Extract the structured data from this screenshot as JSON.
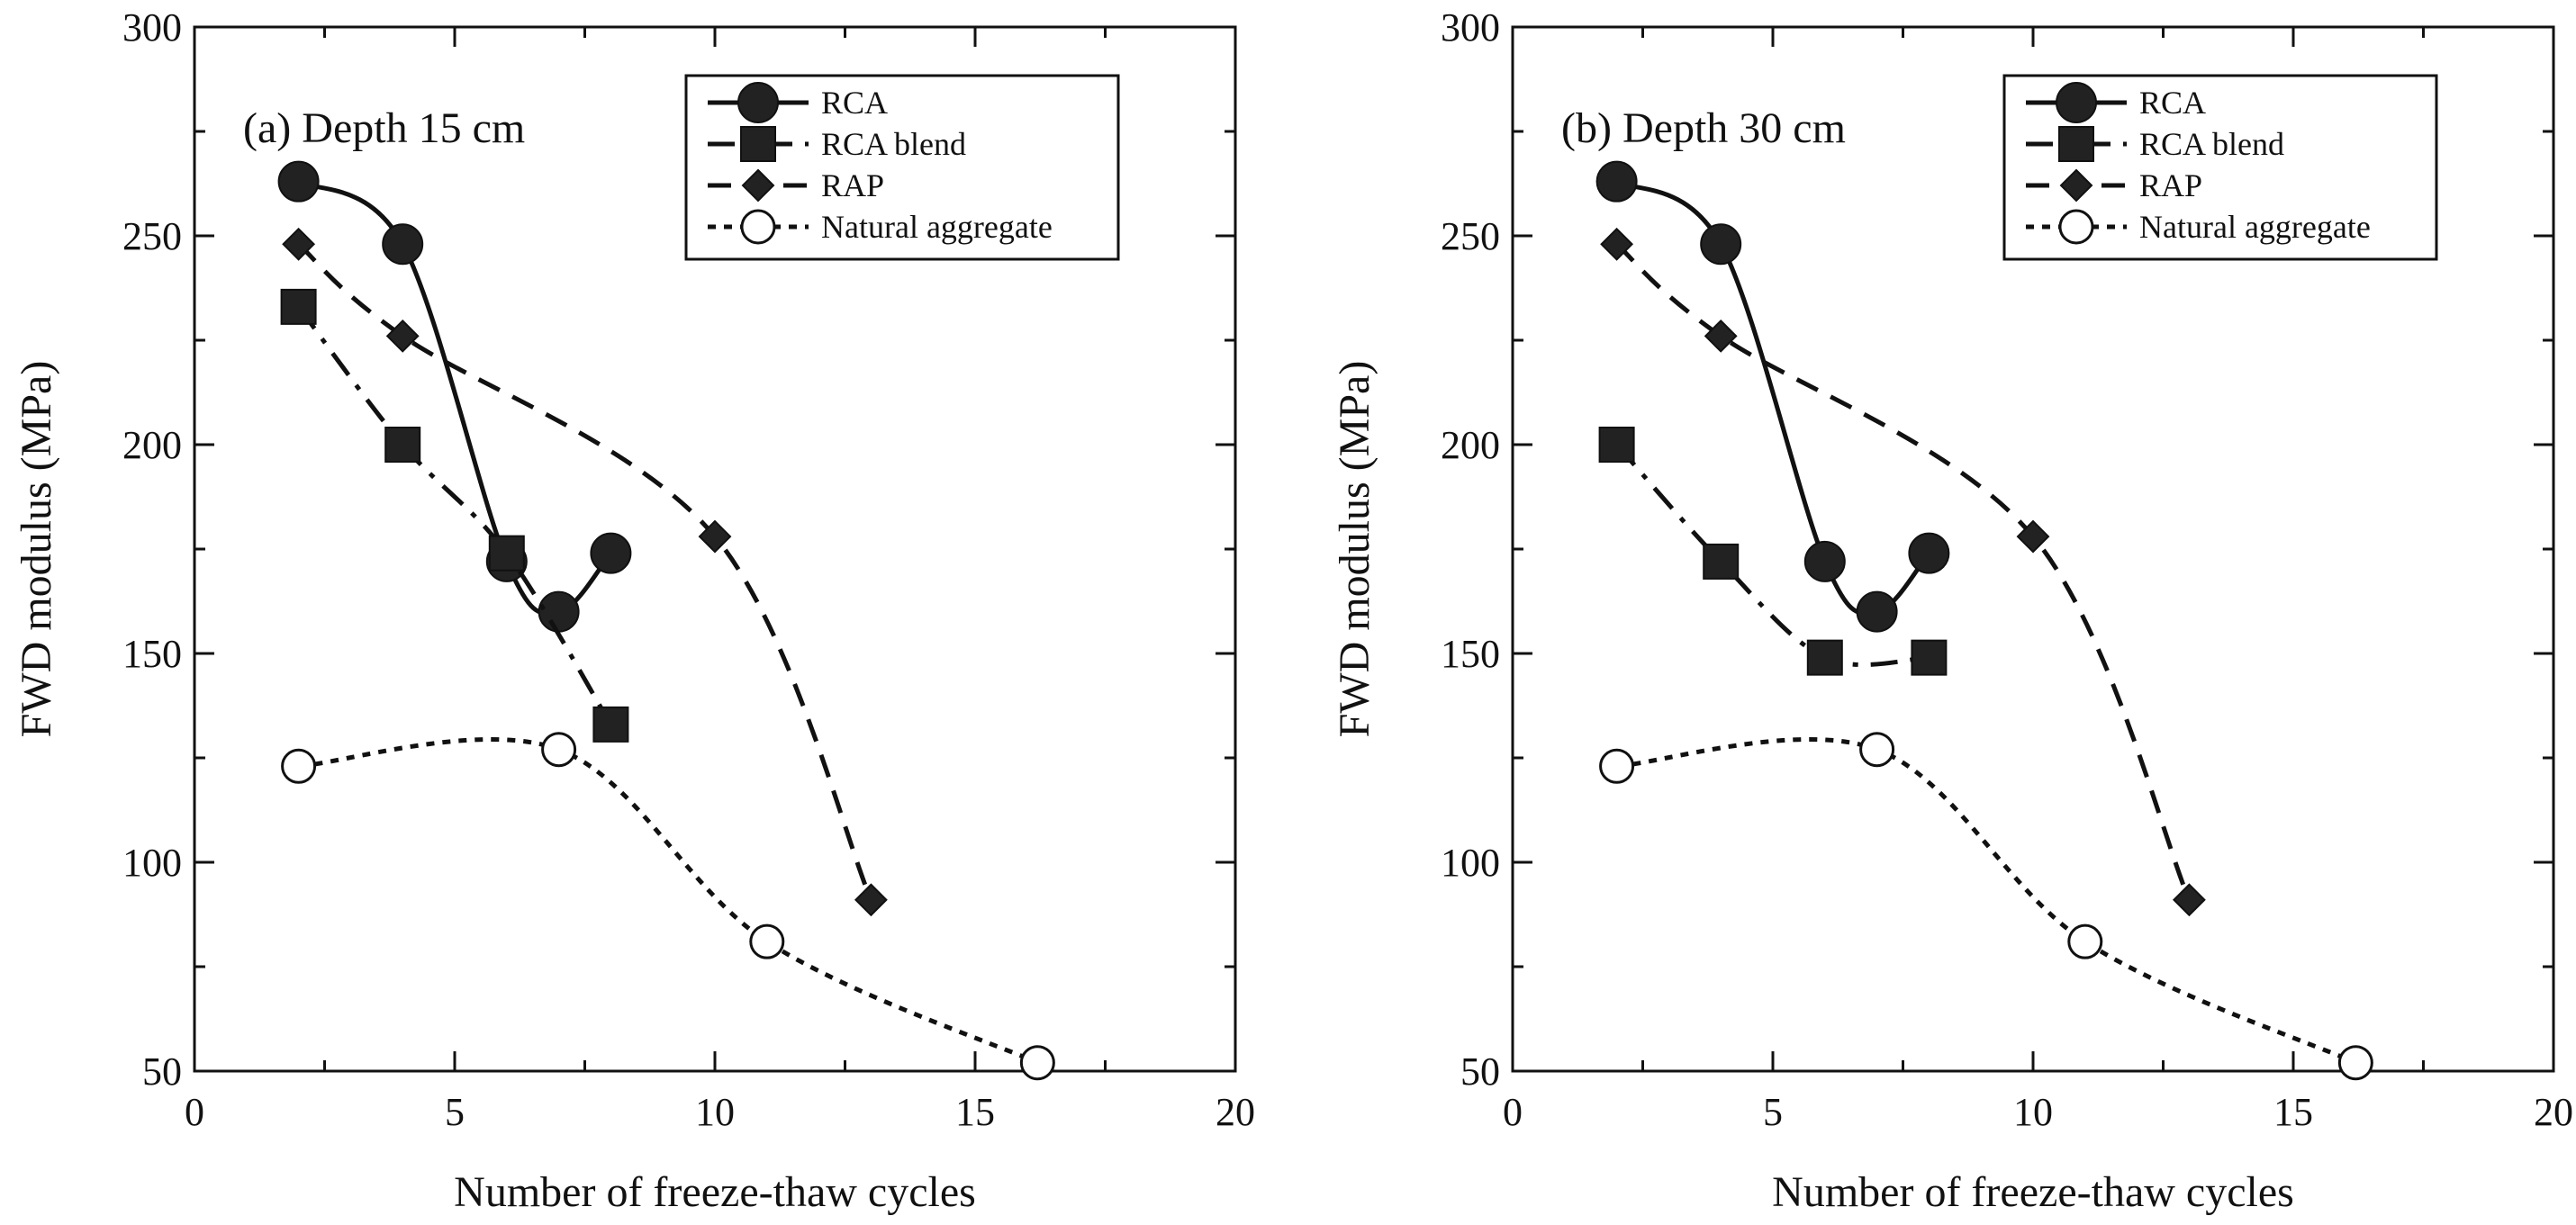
{
  "chart_data": [
    {
      "type": "line",
      "title": "(a) Depth 15 cm",
      "xlabel": "Number of freeze-thaw cycles",
      "ylabel": "FWD modulus (MPa)",
      "xlim": [
        0,
        20
      ],
      "ylim": [
        50,
        300
      ],
      "xticks": [
        0,
        5,
        10,
        15,
        20
      ],
      "yticks": [
        50,
        100,
        150,
        200,
        250,
        300
      ],
      "grid": false,
      "legend_position": "top-right",
      "series": [
        {
          "name": "RCA",
          "marker": "circle-filled",
          "line": "solid",
          "x": [
            2,
            4,
            6,
            7,
            8
          ],
          "y": [
            263,
            248,
            172,
            160,
            174
          ]
        },
        {
          "name": "RCA blend",
          "marker": "square-filled",
          "line": "dash-dot",
          "x": [
            2,
            4,
            6,
            8
          ],
          "y": [
            233,
            200,
            174,
            133
          ]
        },
        {
          "name": "RAP",
          "marker": "diamond-filled",
          "line": "dashed",
          "x": [
            2,
            4,
            10,
            13
          ],
          "y": [
            248,
            226,
            178,
            91
          ]
        },
        {
          "name": "Natural aggregate",
          "marker": "circle-open",
          "line": "dotted",
          "x": [
            2,
            7,
            11,
            16.2
          ],
          "y": [
            123,
            127,
            81,
            52
          ]
        }
      ]
    },
    {
      "type": "line",
      "title": "(b) Depth 30 cm",
      "xlabel": "Number of freeze-thaw cycles",
      "ylabel": "FWD modulus (MPa)",
      "xlim": [
        0,
        20
      ],
      "ylim": [
        50,
        300
      ],
      "xticks": [
        0,
        5,
        10,
        15,
        20
      ],
      "yticks": [
        50,
        100,
        150,
        200,
        250,
        300
      ],
      "grid": false,
      "legend_position": "top-right",
      "series": [
        {
          "name": "RCA",
          "marker": "circle-filled",
          "line": "solid",
          "x": [
            2,
            4,
            6,
            7,
            8
          ],
          "y": [
            263,
            248,
            172,
            160,
            174
          ]
        },
        {
          "name": "RCA blend",
          "marker": "square-filled",
          "line": "dash-dot",
          "x": [
            2,
            4,
            6,
            8
          ],
          "y": [
            200,
            172,
            149,
            149
          ]
        },
        {
          "name": "RAP",
          "marker": "diamond-filled",
          "line": "dashed",
          "x": [
            2,
            4,
            10,
            13
          ],
          "y": [
            248,
            226,
            178,
            91
          ]
        },
        {
          "name": "Natural aggregate",
          "marker": "circle-open",
          "line": "dotted",
          "x": [
            2,
            7,
            11,
            16.2
          ],
          "y": [
            123,
            127,
            81,
            52
          ]
        }
      ]
    }
  ]
}
